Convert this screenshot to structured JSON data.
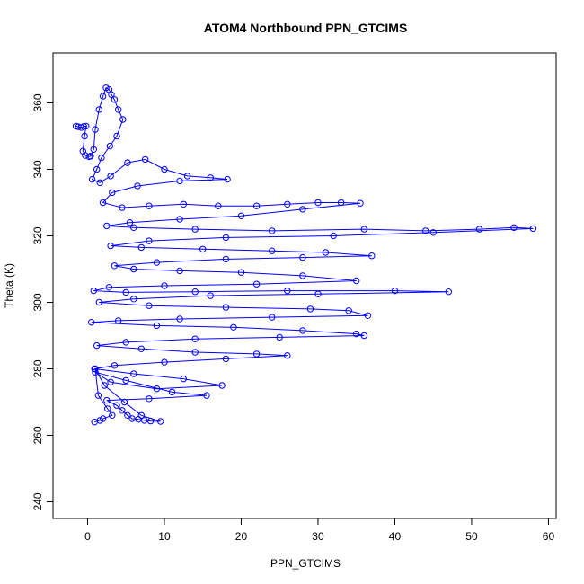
{
  "chart_data": {
    "type": "scatter",
    "title": "ATOM4 Northbound PPN_GTCIMS",
    "xlabel": "PPN_GTCIMS",
    "ylabel": "Theta (K)",
    "xlim": [
      -4.5,
      61
    ],
    "ylim": [
      235,
      375
    ],
    "x_ticks": [
      0,
      10,
      20,
      30,
      40,
      50,
      60
    ],
    "y_ticks": [
      240,
      260,
      280,
      300,
      320,
      340,
      360
    ],
    "grid": false,
    "legend": "none",
    "marker": "open-circle",
    "connected": true,
    "color": "#0000ff",
    "series": [
      {
        "x": [
          -1.5,
          -1.2,
          -0.8,
          -0.5,
          -0.2,
          -0.4,
          -0.6,
          -0.3,
          0.2,
          0.4,
          0.8,
          1.0,
          1.5,
          2.0,
          2.4,
          2.8,
          3.1,
          3.5,
          4.0,
          4.6,
          3.8,
          2.9,
          1.8,
          1.2,
          0.6,
          1.6,
          3.0,
          5.2,
          7.5,
          10.0,
          13.0,
          16.0,
          18.2,
          12.0,
          6.5,
          3.2,
          2.0,
          4.5,
          8.0,
          12.5,
          17.0,
          22.0,
          26.0,
          30.0,
          33.0,
          35.5,
          28.0,
          20.0,
          12.0,
          5.5,
          2.5,
          6.0,
          14.0,
          24.0,
          36.0,
          44.0,
          51.0,
          55.5,
          58.0,
          45.0,
          32.0,
          18.0,
          8.0,
          3.0,
          7.0,
          15.0,
          24.0,
          31.0,
          37.0,
          28.0,
          18.0,
          9.0,
          3.5,
          6.0,
          12.0,
          20.0,
          28.0,
          35.0,
          22.0,
          10.0,
          2.8,
          0.8,
          5.0,
          14.0,
          26.0,
          40.0,
          47.0,
          30.0,
          16.0,
          6.0,
          1.5,
          8.0,
          18.0,
          29.0,
          34.0,
          36.5,
          24.0,
          12.0,
          4.0,
          0.5,
          9.0,
          19.0,
          28.0,
          35.0,
          36.0,
          25.0,
          14.0,
          5.0,
          1.2,
          7.0,
          14.0,
          22.0,
          26.0,
          18.0,
          10.0,
          3.5,
          0.9,
          6.0,
          12.5,
          17.5,
          9.0,
          3.0,
          1.0,
          5.0,
          11.0,
          15.5,
          8.0,
          2.5,
          3.8,
          4.5,
          5.2,
          5.8,
          6.6,
          7.4,
          8.2,
          9.5,
          7.0,
          4.8,
          2.2,
          1.0,
          1.4,
          2.6,
          3.2,
          2.0,
          1.6,
          0.9
        ],
        "y": [
          353.0,
          352.8,
          352.6,
          352.9,
          353.0,
          350.0,
          345.5,
          344.2,
          343.8,
          344.0,
          346.0,
          352.0,
          358.0,
          362.0,
          364.5,
          364.0,
          362.5,
          361.0,
          358.0,
          355.0,
          350.0,
          347.0,
          343.5,
          340.0,
          337.0,
          336.0,
          338.0,
          342.0,
          343.0,
          340.0,
          338.0,
          337.5,
          337.0,
          336.5,
          335.0,
          333.0,
          330.0,
          328.5,
          329.0,
          329.5,
          329.0,
          329.0,
          329.5,
          330.0,
          330.0,
          329.8,
          328.0,
          326.0,
          325.0,
          324.0,
          323.0,
          322.5,
          322.0,
          321.5,
          322.0,
          321.5,
          322.0,
          322.5,
          322.2,
          321.0,
          320.0,
          319.5,
          318.5,
          317.0,
          316.5,
          316.0,
          315.5,
          315.0,
          314.0,
          313.5,
          313.0,
          312.0,
          311.0,
          310.0,
          309.5,
          309.0,
          308.0,
          306.5,
          305.5,
          305.0,
          304.5,
          303.5,
          303.0,
          303.2,
          303.5,
          303.5,
          303.2,
          302.5,
          302.0,
          301.0,
          300.0,
          299.0,
          298.5,
          298.0,
          297.5,
          296.0,
          295.5,
          295.0,
          294.5,
          294.0,
          293.0,
          292.5,
          291.5,
          290.5,
          290.0,
          289.5,
          289.0,
          288.0,
          287.0,
          286.0,
          285.0,
          284.5,
          284.0,
          283.0,
          282.0,
          281.0,
          280.0,
          278.5,
          277.0,
          275.0,
          274.0,
          276.0,
          279.0,
          276.5,
          273.0,
          272.0,
          271.0,
          270.5,
          269.0,
          267.5,
          266.0,
          265.0,
          264.8,
          264.5,
          264.3,
          264.2,
          266.0,
          270.0,
          275.0,
          280.0,
          272.0,
          268.0,
          266.0,
          265.0,
          264.5,
          264.0
        ]
      }
    ]
  }
}
